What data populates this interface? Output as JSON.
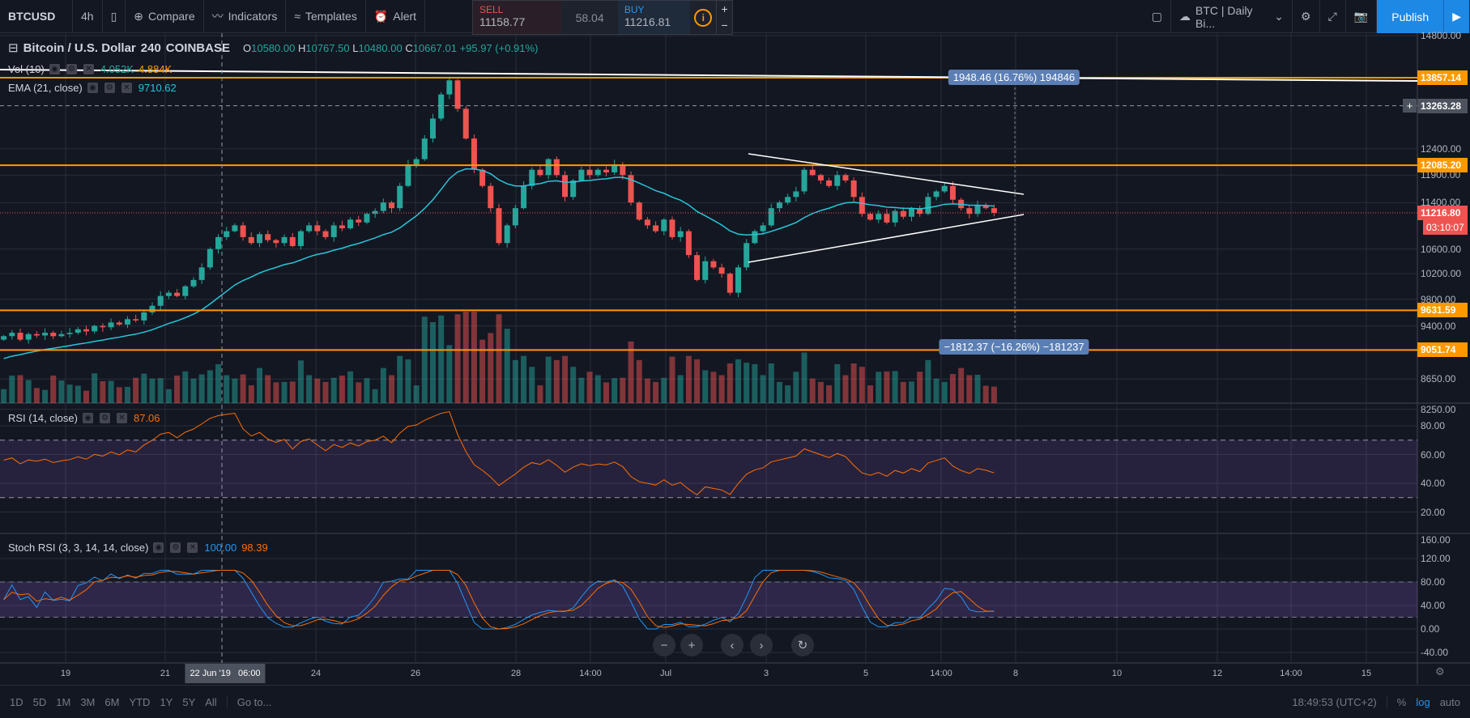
{
  "toolbar": {
    "symbol": "BTCUSD",
    "interval": "4h",
    "compare": "Compare",
    "indicators": "Indicators",
    "templates": "Templates",
    "alert": "Alert",
    "layout": "BTC | Daily Bi...",
    "publish": "Publish"
  },
  "trade": {
    "sell_label": "SELL",
    "sell_price": "11158.77",
    "spread": "58.04",
    "buy_label": "BUY",
    "buy_price": "11216.81",
    "plus": "+",
    "minus": "−"
  },
  "legend": {
    "title": "Bitcoin / U.S. Dollar",
    "res": "240",
    "exchange": "COINBASE",
    "o_l": "O",
    "o": "10580.00",
    "h_l": "H",
    "h": "10767.50",
    "l_l": "L",
    "l": "10480.00",
    "c_l": "C",
    "c": "10667.01",
    "chg": "+95.97 (+0.91%)",
    "vol": "Vol (10)",
    "vol_a": "4.052K",
    "vol_b": "4.884K",
    "ema": "EMA (21, close)",
    "ema_v": "9710.62",
    "rsi": "RSI (14, close)",
    "rsi_v": "87.06",
    "stoch": "Stoch RSI (3, 3, 14, 14, close)",
    "stoch_k": "100.00",
    "stoch_d": "98.39"
  },
  "measures": {
    "up": "1948.46 (16.76%) 194846",
    "down": "−1812.37 (−16.26%) −181237"
  },
  "price_axis": [
    "14800.00",
    "12400.00",
    "11900.00",
    "11400.00",
    "10600.00",
    "10200.00",
    "9800.00",
    "9400.00",
    "8650.00",
    "8250.00"
  ],
  "price_tags": {
    "levels": [
      "13857.14",
      "12085.20",
      "9631.59",
      "9051.74"
    ],
    "crosshair": "13263.28",
    "last": "11216.80",
    "countdown": "03:10:07"
  },
  "rsi_axis": [
    "80.00",
    "60.00",
    "40.00",
    "20.00"
  ],
  "stoch_axis": [
    "160.00",
    "120.00",
    "80.00",
    "40.00",
    "0.00",
    "-40.00"
  ],
  "time_axis": [
    "19",
    "21",
    "24",
    "26",
    "28",
    "14:00",
    "Jul",
    "3",
    "5",
    "14:00",
    "8",
    "10",
    "12",
    "14:00",
    "15"
  ],
  "crosshair_time": "22 Jun '19   06:00",
  "bottom": {
    "ranges": [
      "1D",
      "5D",
      "1M",
      "3M",
      "6M",
      "YTD",
      "1Y",
      "5Y",
      "All"
    ],
    "goto": "Go to...",
    "clock": "18:49:53 (UTC+2)",
    "pct": "%",
    "log": "log",
    "auto": "auto"
  },
  "colors": {
    "up": "#26a69a",
    "down": "#ef5350",
    "level": "#ff9800",
    "ema": "#26c6da",
    "rsi": "#ff6d00",
    "k": "#2196f3",
    "d": "#ff6d00",
    "publish": "#1e88e5"
  },
  "chart_data": {
    "type": "candlestick",
    "timeframe": "240",
    "start_open": 9200,
    "close": [
      9250,
      9300,
      9200,
      9280,
      9260,
      9300,
      9250,
      9280,
      9300,
      9350,
      9320,
      9400,
      9380,
      9450,
      9420,
      9500,
      9480,
      9600,
      9700,
      9850,
      9900,
      9850,
      10000,
      10100,
      10300,
      10600,
      10800,
      10900,
      11000,
      10800,
      10700,
      10850,
      10750,
      10700,
      10800,
      10650,
      10900,
      11000,
      10900,
      10800,
      11000,
      10950,
      11100,
      11050,
      11200,
      11250,
      11400,
      11300,
      11700,
      12100,
      12200,
      12600,
      13000,
      13500,
      13800,
      13200,
      12600,
      12000,
      11700,
      11300,
      10700,
      11000,
      11300,
      11700,
      12000,
      11900,
      12200,
      11900,
      11500,
      11800,
      12000,
      11900,
      12000,
      11950,
      12100,
      11900,
      11400,
      11100,
      11000,
      10900,
      11100,
      10800,
      10900,
      10500,
      10100,
      10400,
      10300,
      10200,
      9900,
      10300,
      10700,
      10900,
      11000,
      11300,
      11400,
      11500,
      11600,
      12000,
      11900,
      11800,
      11700,
      11900,
      11800,
      11500,
      11200,
      11100,
      11200,
      11050,
      11250,
      11150,
      11300,
      11200,
      11500,
      11600,
      11700,
      11450,
      11300,
      11200,
      11350,
      11300,
      11216.8
    ],
    "levels": [
      13857.14,
      12085.2,
      9631.59,
      9051.74
    ],
    "ema_period": 21,
    "rsi_period": 14,
    "rsi_bands": [
      30,
      70
    ],
    "stoch_bands": [
      20,
      80
    ]
  }
}
